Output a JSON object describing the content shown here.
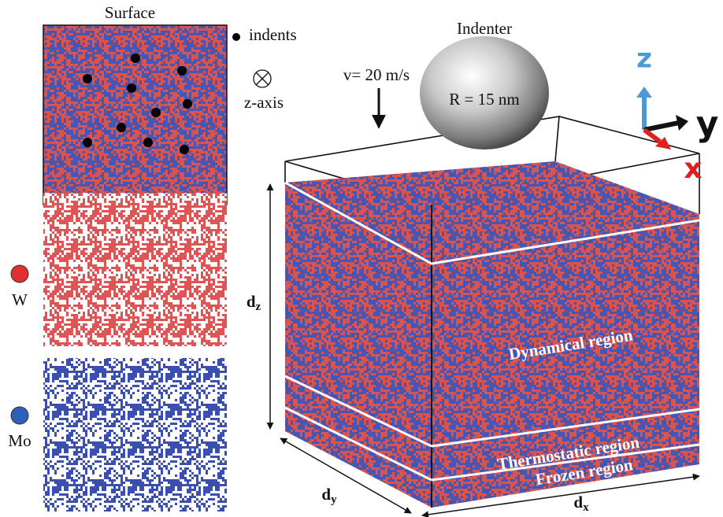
{
  "panels": {
    "surface_title": "Surface",
    "indents_legend": "indents",
    "z_axis_label": "z-axis",
    "w_label": "W",
    "mo_label": "Mo"
  },
  "indenter": {
    "title": "Indenter",
    "velocity": "v= 20 m/s",
    "radius": "R = 15 nm"
  },
  "axes": {
    "z": "z",
    "y": "y",
    "x": "x"
  },
  "dimensions": {
    "dz": {
      "symbol": "d",
      "subscript": "z"
    },
    "dy": {
      "symbol": "d",
      "subscript": "y"
    },
    "dx": {
      "symbol": "d",
      "subscript": "x"
    }
  },
  "regions": {
    "dynamical": "Dynamical region",
    "thermostatic": "Thermostatic region",
    "frozen": "Frozen region"
  }
}
